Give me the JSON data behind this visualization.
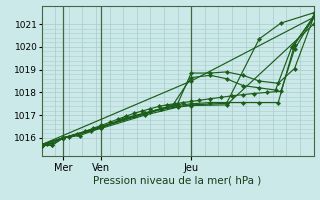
{
  "bg_color": "#cce9e9",
  "grid_color": "#aacccc",
  "line_color": "#1a5e1a",
  "title": "Pression niveau de la mer( hPa )",
  "ylabel_ticks": [
    1016,
    1017,
    1018,
    1019,
    1020,
    1021
  ],
  "ylim": [
    1015.2,
    1021.8
  ],
  "xlim": [
    0.0,
    1.0
  ],
  "xtick_positions": [
    0.08,
    0.22,
    0.55
  ],
  "xtick_labels": [
    "Mer",
    "Ven",
    "Jeu"
  ],
  "vline_positions": [
    0.08,
    0.22,
    0.55
  ],
  "series": [
    {
      "x": [
        0.0,
        0.02,
        0.04,
        0.08,
        0.1,
        0.13,
        0.16,
        0.19,
        0.22,
        0.25,
        0.28,
        0.31,
        0.34,
        0.37,
        0.4,
        0.43,
        0.46,
        0.49,
        0.52,
        0.55,
        0.58,
        0.62,
        0.66,
        0.7,
        0.74,
        0.78,
        0.83,
        0.88,
        0.93,
        1.0
      ],
      "y": [
        1015.7,
        1015.72,
        1015.78,
        1016.0,
        1016.05,
        1016.15,
        1016.28,
        1016.42,
        1016.55,
        1016.68,
        1016.82,
        1016.95,
        1017.08,
        1017.18,
        1017.28,
        1017.38,
        1017.45,
        1017.5,
        1017.55,
        1017.6,
        1017.65,
        1017.72,
        1017.78,
        1017.85,
        1017.9,
        1017.95,
        1018.0,
        1018.05,
        1019.9,
        1021.3
      ]
    },
    {
      "x": [
        0.0,
        0.55,
        1.0
      ],
      "y": [
        1015.7,
        1018.5,
        1021.3
      ]
    },
    {
      "x": [
        0.0,
        0.08,
        0.22,
        0.4,
        0.5,
        0.55,
        0.62,
        0.68,
        0.74,
        0.8,
        0.87,
        0.93,
        1.0
      ],
      "y": [
        1015.7,
        1016.0,
        1016.5,
        1017.15,
        1017.5,
        1018.85,
        1018.85,
        1018.9,
        1018.75,
        1018.5,
        1018.4,
        1019.05,
        1021.3
      ]
    },
    {
      "x": [
        0.0,
        0.08,
        0.22,
        0.38,
        0.48,
        0.55,
        0.62,
        0.68,
        0.74,
        0.8,
        0.86,
        0.92,
        1.0
      ],
      "y": [
        1015.7,
        1016.0,
        1016.48,
        1017.05,
        1017.4,
        1018.65,
        1018.75,
        1018.6,
        1018.3,
        1018.2,
        1018.1,
        1020.0,
        1021.3
      ]
    },
    {
      "x": [
        0.0,
        0.04,
        0.08,
        0.14,
        0.22,
        0.3,
        0.38,
        0.44,
        0.5,
        0.55,
        0.62,
        0.68,
        0.74,
        0.8,
        0.87,
        0.93,
        1.0
      ],
      "y": [
        1015.65,
        1015.7,
        1016.0,
        1016.1,
        1016.45,
        1016.85,
        1017.1,
        1017.28,
        1017.42,
        1017.5,
        1017.55,
        1017.55,
        1017.55,
        1017.55,
        1017.55,
        1020.1,
        1021.35
      ]
    },
    {
      "x": [
        0.0,
        0.04,
        0.08,
        0.22,
        0.38,
        0.5,
        0.55,
        0.68,
        1.0
      ],
      "y": [
        1015.65,
        1015.68,
        1016.0,
        1016.42,
        1017.0,
        1017.35,
        1017.42,
        1017.45,
        1021.0
      ]
    },
    {
      "x": [
        0.0,
        0.08,
        0.18,
        0.22,
        0.34,
        0.44,
        0.55,
        0.68,
        0.8,
        0.88,
        1.0
      ],
      "y": [
        1015.7,
        1016.0,
        1016.3,
        1016.48,
        1016.95,
        1017.25,
        1017.45,
        1017.52,
        1020.35,
        1021.05,
        1021.5
      ]
    }
  ]
}
